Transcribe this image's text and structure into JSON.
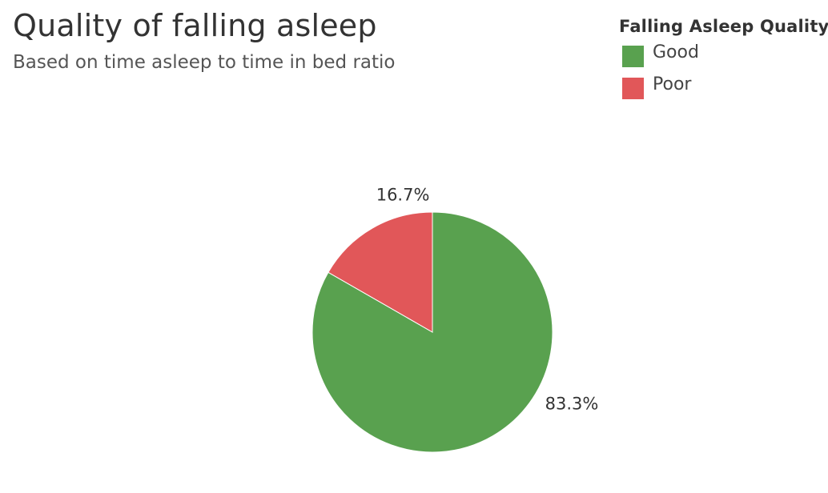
{
  "header": {
    "title": "Quality of falling asleep",
    "subtitle": "Based on time asleep to time in bed ratio"
  },
  "legend": {
    "title": "Falling Asleep Quality",
    "items": [
      {
        "label": "Good",
        "color": "#59a14f"
      },
      {
        "label": "Poor",
        "color": "#e15759"
      }
    ]
  },
  "chart_data": {
    "type": "pie",
    "title": "Quality of falling asleep",
    "subtitle": "Based on time asleep to time in bed ratio",
    "legend_title": "Falling Asleep Quality",
    "legend_placement": "top-right",
    "slices": [
      {
        "label": "Good",
        "value": 83.3,
        "display": "83.3%",
        "color": "#59a14f"
      },
      {
        "label": "Poor",
        "value": 16.7,
        "display": "16.7%",
        "color": "#e15759"
      }
    ]
  }
}
